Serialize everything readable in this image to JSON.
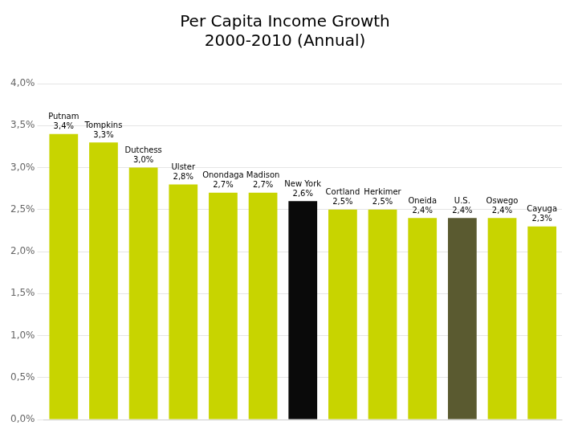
{
  "chart_data": {
    "type": "bar",
    "title": "Per Capita Income Growth\n2000-2010 (Annual)",
    "categories": [
      "Putnam",
      "Tompkins",
      "Dutchess",
      "Ulster",
      "Onondaga",
      "Madison",
      "New York",
      "Cortland",
      "Herkimer",
      "Oneida",
      "U.S.",
      "Oswego",
      "Cayuga"
    ],
    "values": [
      3.4,
      3.3,
      3.0,
      2.8,
      2.7,
      2.7,
      2.6,
      2.5,
      2.5,
      2.4,
      2.4,
      2.4,
      2.3
    ],
    "value_labels": [
      "3,4%",
      "3,3%",
      "3,0%",
      "2,8%",
      "2,7%",
      "2,7%",
      "2,6%",
      "2,5%",
      "2,5%",
      "2,4%",
      "2,4%",
      "2,4%",
      "2,3%"
    ],
    "colors": [
      "#c8d400",
      "#c8d400",
      "#c8d400",
      "#c8d400",
      "#c8d400",
      "#c8d400",
      "#0a0a0a",
      "#c8d400",
      "#c8d400",
      "#c8d400",
      "#5a5a30",
      "#c8d400",
      "#c8d400"
    ],
    "ylim": [
      0,
      4.0
    ],
    "yticks": [
      {
        "value": 0.0,
        "label": "0,0%"
      },
      {
        "value": 0.5,
        "label": "0,5%"
      },
      {
        "value": 1.0,
        "label": "1,0%"
      },
      {
        "value": 1.5,
        "label": "1,5%"
      },
      {
        "value": 2.0,
        "label": "2,0%"
      },
      {
        "value": 2.5,
        "label": "2,5%"
      },
      {
        "value": 3.0,
        "label": "3,0%"
      },
      {
        "value": 3.5,
        "label": "3,5%"
      },
      {
        "value": 4.0,
        "label": "4,0%"
      }
    ],
    "grid": true,
    "data_labels": true,
    "tick_labels": "y"
  }
}
